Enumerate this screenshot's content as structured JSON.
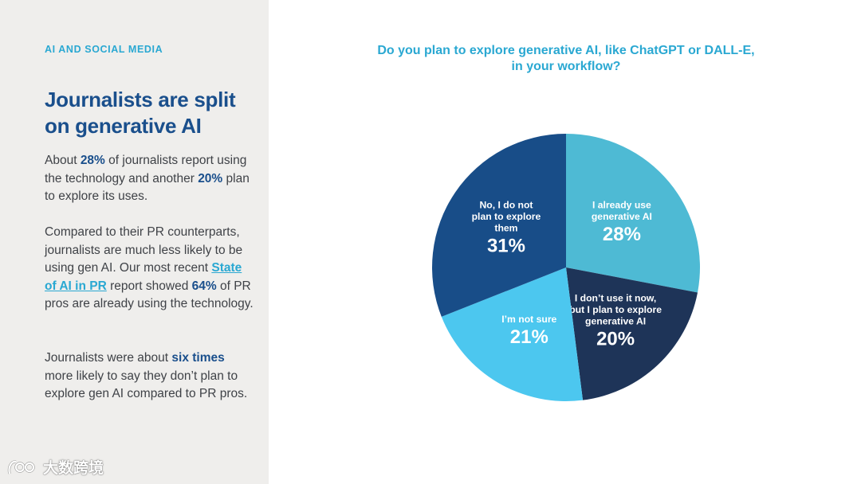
{
  "eyebrow": "AI AND SOCIAL MEDIA",
  "headline": "Journalists are split on generative AI",
  "paragraph1": {
    "t1": "About ",
    "b1": "28%",
    "t2": " of journalists report using the technology and another ",
    "b2": "20%",
    "t3": " plan to explore its uses."
  },
  "paragraph2": {
    "t1": "Compared to their PR counterparts, journalists are much less likely to be using gen AI. Our most recent ",
    "link": "State of AI in PR",
    "t2": " report showed ",
    "b1": "64%",
    "t3": " of PR pros are already using the technology."
  },
  "paragraph3": {
    "t1": "Journalists were about ",
    "b1": "six times",
    "t2": " more likely to say they don’t plan to explore gen AI compared to PR pros."
  },
  "watermark": "大数跨境",
  "chart_data": {
    "type": "pie",
    "title": "Do you plan to explore generative AI, like ChatGPT or DALL-E, in your workflow?",
    "start_angle_deg": 0,
    "direction": "clockwise",
    "slices": [
      {
        "label": "I already use generative AI",
        "label_lines": [
          "I already use",
          "generative AI"
        ],
        "value": 28,
        "value_label": "28%",
        "color": "#4ebad4"
      },
      {
        "label": "I don’t use it now, but I plan to explore generative AI",
        "label_lines": [
          "I don’t use it now,",
          "but I plan to explore",
          "generative AI"
        ],
        "value": 20,
        "value_label": "20%",
        "color": "#1e3458"
      },
      {
        "label": "I’m not sure",
        "label_lines": [
          "I’m not sure"
        ],
        "value": 21,
        "value_label": "21%",
        "color": "#4cc7ef"
      },
      {
        "label": "No, I do not plan to explore them",
        "label_lines": [
          "No, I do not",
          "plan to explore",
          "them"
        ],
        "value": 31,
        "value_label": "31%",
        "color": "#184d88"
      }
    ]
  }
}
